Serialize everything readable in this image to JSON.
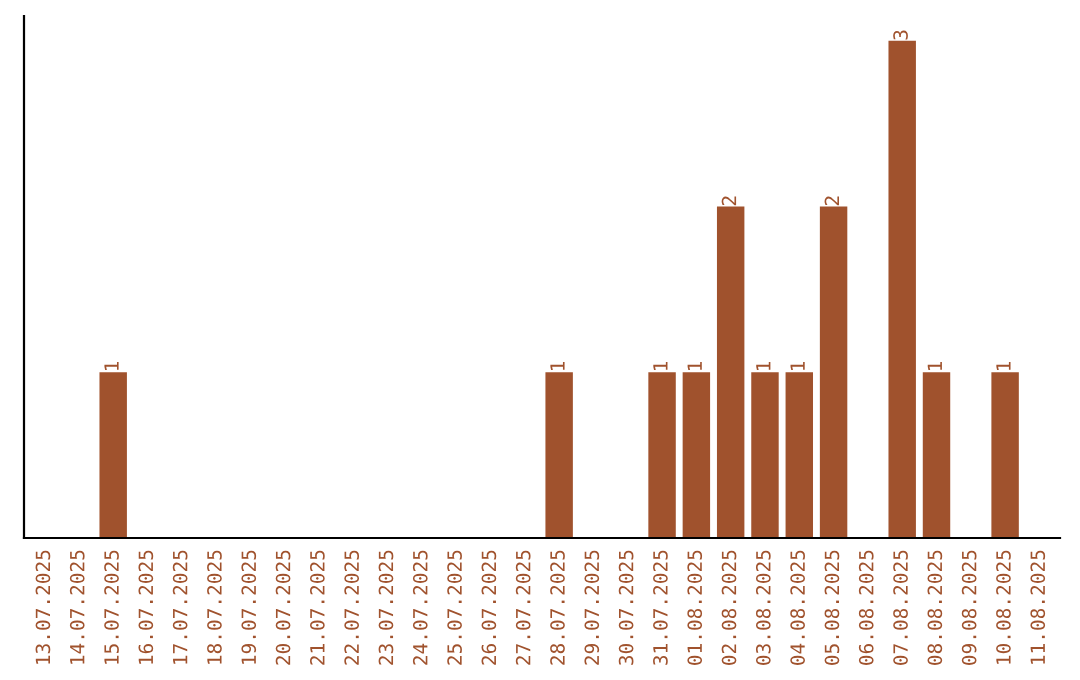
{
  "chart_data": {
    "type": "bar",
    "categories": [
      "13.07.2025",
      "14.07.2025",
      "15.07.2025",
      "16.07.2025",
      "17.07.2025",
      "18.07.2025",
      "19.07.2025",
      "20.07.2025",
      "21.07.2025",
      "22.07.2025",
      "23.07.2025",
      "24.07.2025",
      "25.07.2025",
      "26.07.2025",
      "27.07.2025",
      "28.07.2025",
      "29.07.2025",
      "30.07.2025",
      "31.07.2025",
      "01.08.2025",
      "02.08.2025",
      "03.08.2025",
      "04.08.2025",
      "05.08.2025",
      "06.08.2025",
      "07.08.2025",
      "08.08.2025",
      "09.08.2025",
      "10.08.2025",
      "11.08.2025"
    ],
    "values": [
      0,
      0,
      1,
      0,
      0,
      0,
      0,
      0,
      0,
      0,
      0,
      0,
      0,
      0,
      0,
      1,
      0,
      0,
      1,
      1,
      2,
      1,
      1,
      2,
      0,
      3,
      1,
      0,
      1,
      0
    ],
    "value_labels": [
      null,
      null,
      "1",
      null,
      null,
      null,
      null,
      null,
      null,
      null,
      null,
      null,
      null,
      null,
      null,
      "1",
      null,
      null,
      "1",
      "1",
      "2",
      "1",
      "1",
      "2",
      null,
      "3",
      "1",
      null,
      "1",
      null
    ],
    "color": "#a0522d",
    "ylim": [
      0,
      3.15
    ],
    "tick_labels": "x",
    "grid": false,
    "legend": false
  }
}
